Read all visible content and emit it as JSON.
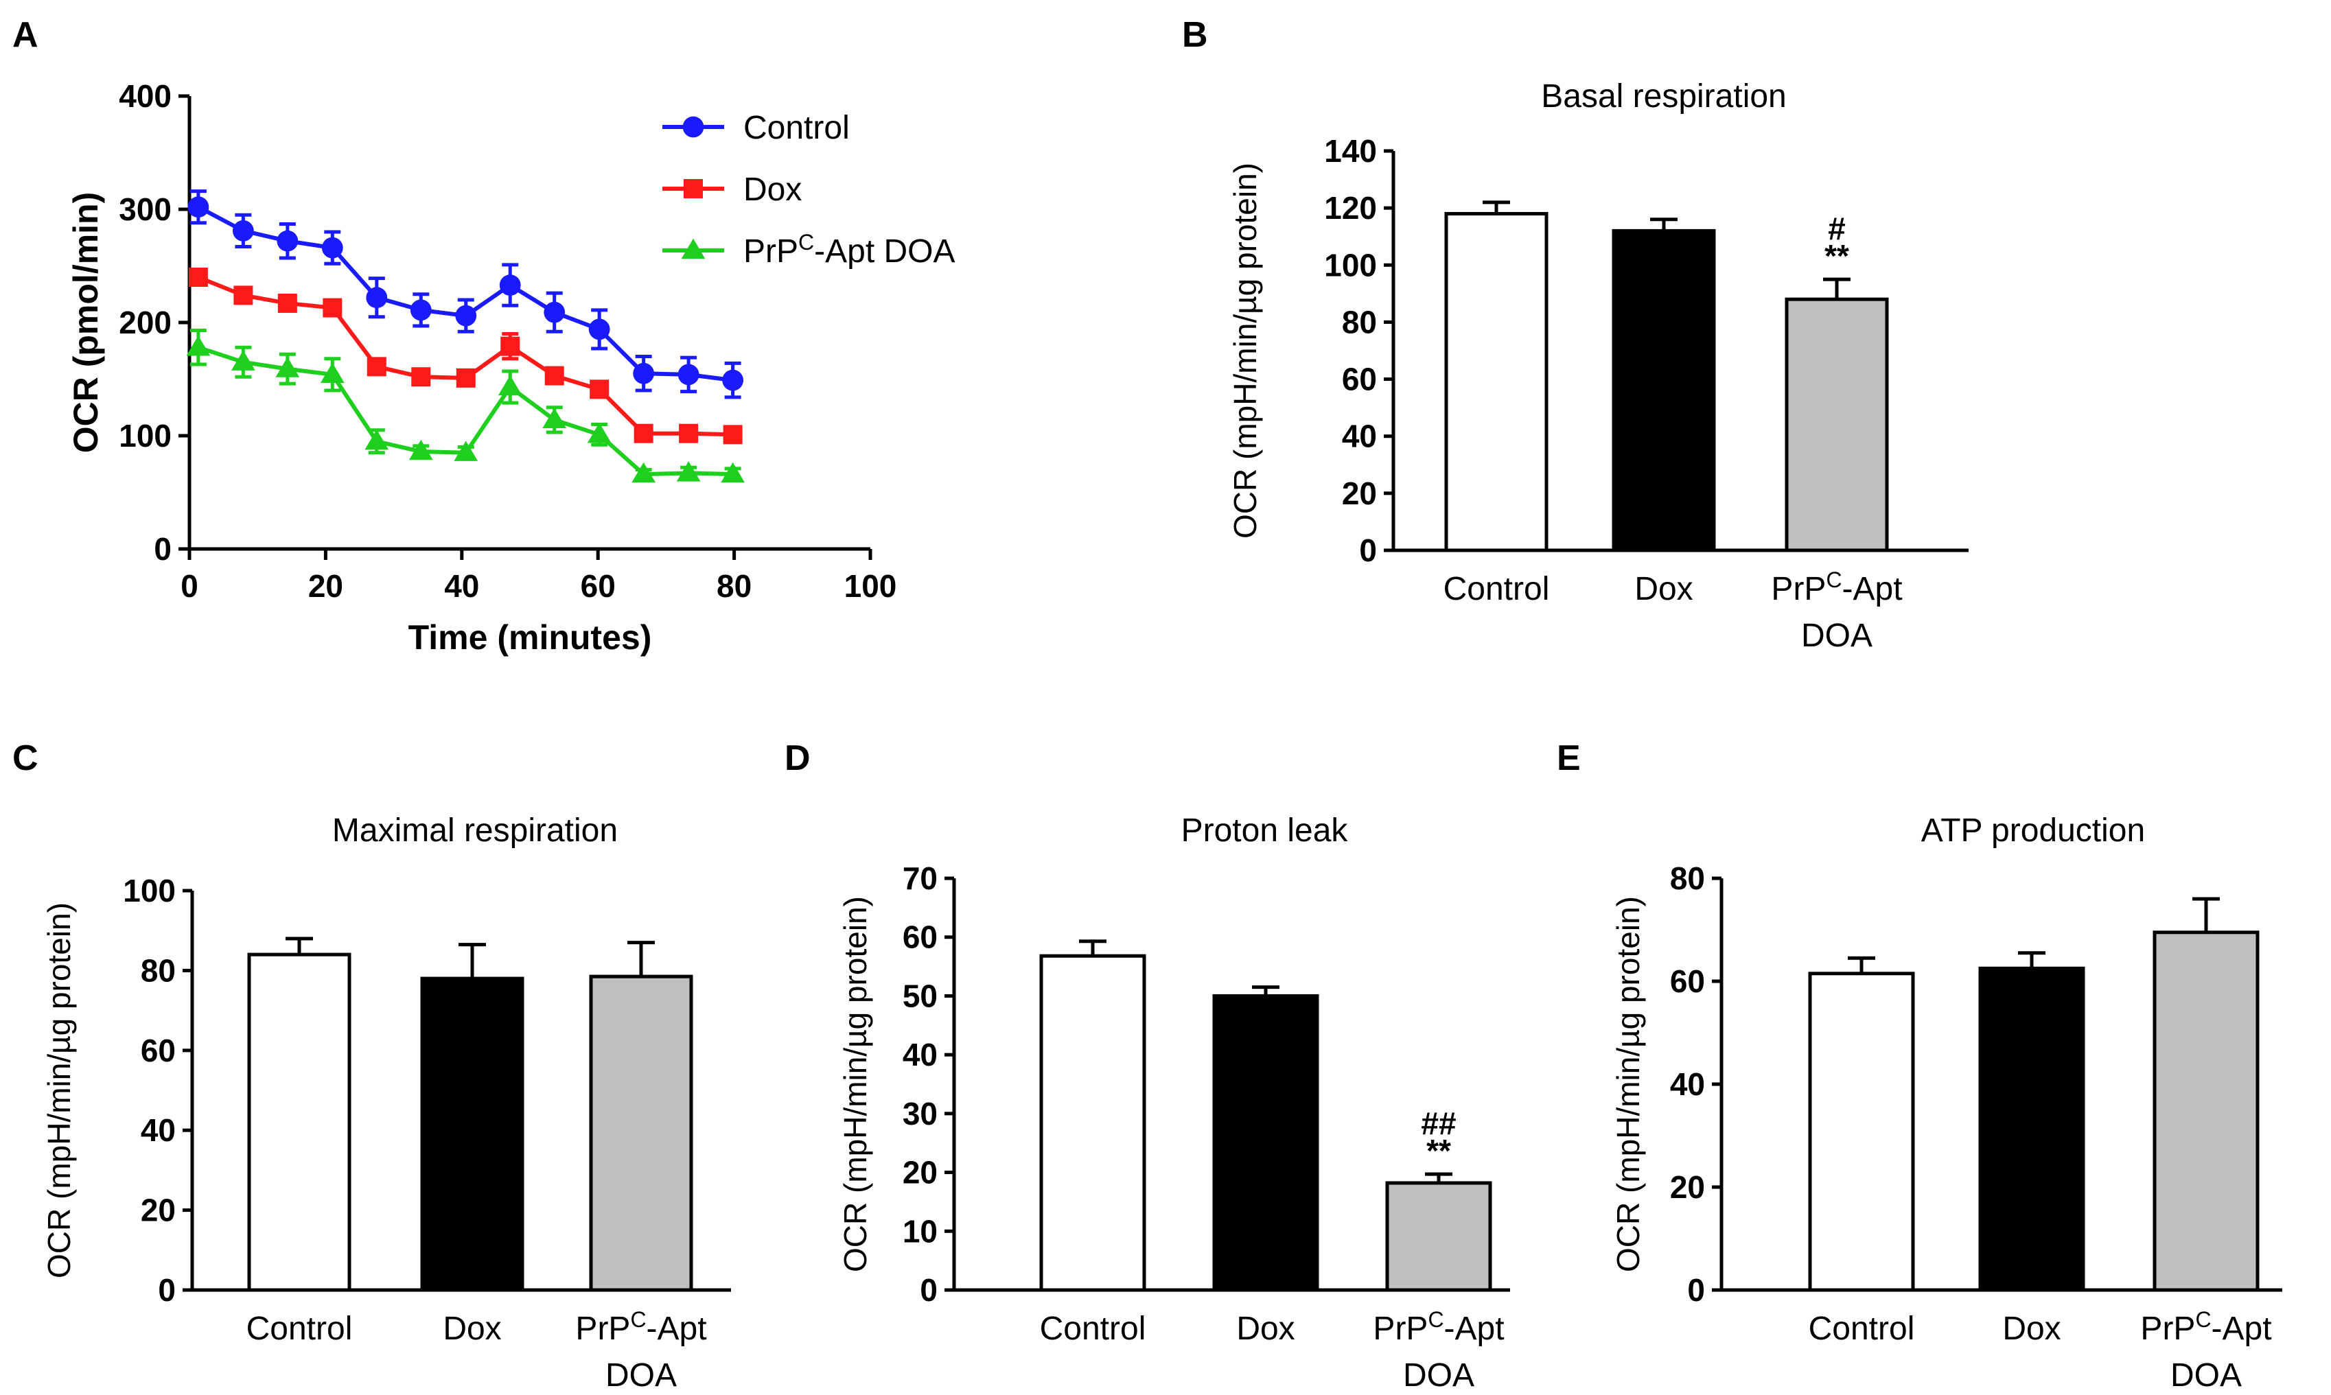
{
  "chart_data": [
    {
      "panel": "A",
      "type": "line",
      "title": "",
      "xlabel": "Time (minutes)",
      "ylabel": "OCR (pmol/min)",
      "xlim": [
        0,
        100
      ],
      "ylim": [
        0,
        400
      ],
      "xticks": [
        "0",
        "20",
        "40",
        "60",
        "80",
        "100"
      ],
      "yticks": [
        "0",
        "100",
        "200",
        "300",
        "400"
      ],
      "legend_position": "top-right",
      "x": [
        1.3,
        7.9,
        14.4,
        21,
        27.5,
        34,
        40.6,
        47.1,
        53.6,
        60.2,
        66.7,
        73.3,
        79.8
      ],
      "series": [
        {
          "name": "Control",
          "color": "#1a1aff",
          "marker": "circle",
          "values": [
            302,
            281,
            272,
            266,
            222,
            211,
            206,
            233,
            209,
            194,
            155,
            154,
            149
          ],
          "errors": [
            14,
            14,
            15,
            14,
            17,
            14,
            14,
            18,
            17,
            17,
            15,
            15,
            15
          ]
        },
        {
          "name": "Dox",
          "color": "#ff1a1a",
          "marker": "square",
          "values": [
            240,
            224,
            217,
            213,
            161,
            152,
            151,
            179,
            153,
            141,
            102,
            102,
            101
          ],
          "errors": [
            5,
            5,
            4,
            5,
            5,
            4,
            4,
            11,
            5,
            5,
            4,
            4,
            4
          ]
        },
        {
          "name": "PrP",
          "name_sup": "C",
          "name_rest": "-Apt DOA",
          "color": "#1ecf1e",
          "marker": "triangle",
          "values": [
            178,
            165,
            159,
            154,
            95,
            86,
            85,
            143,
            114,
            101,
            66,
            67,
            66
          ],
          "errors": [
            15,
            13,
            13,
            14,
            10,
            5,
            5,
            14,
            11,
            9,
            4,
            5,
            5
          ]
        }
      ]
    },
    {
      "panel": "B",
      "type": "bar",
      "title": "Basal respiration",
      "ylabel": "OCR (mpH/min/µg protein)",
      "ylim": [
        0,
        140
      ],
      "yticks": [
        "0",
        "20",
        "40",
        "60",
        "80",
        "100",
        "120",
        "140"
      ],
      "categories": [
        "Control",
        "Dox",
        "PrPᶜ-Apt DOA"
      ],
      "values": [
        118,
        112,
        88
      ],
      "errors": [
        4,
        4,
        7
      ],
      "colors": [
        "#ffffff",
        "#000000",
        "#c0c0c0"
      ],
      "annotations": {
        "2": [
          "#",
          "**"
        ]
      }
    },
    {
      "panel": "C",
      "type": "bar",
      "title": "Maximal respiration",
      "ylabel": "OCR (mpH/min/µg protein)",
      "ylim": [
        0,
        100
      ],
      "yticks": [
        "0",
        "20",
        "40",
        "60",
        "80",
        "100"
      ],
      "categories": [
        "Control",
        "Dox",
        "PrPᶜ-Apt DOA"
      ],
      "values": [
        84,
        78,
        78.5
      ],
      "errors": [
        4,
        8.5,
        8.5
      ],
      "colors": [
        "#ffffff",
        "#000000",
        "#c0c0c0"
      ],
      "annotations": {}
    },
    {
      "panel": "D",
      "type": "bar",
      "title": "Proton leak",
      "ylabel": "OCR (mpH/min/µg protein)",
      "ylim": [
        0,
        70
      ],
      "yticks": [
        "0",
        "10",
        "20",
        "30",
        "40",
        "50",
        "60",
        "70"
      ],
      "categories": [
        "Control",
        "Dox",
        "PrPᶜ-Apt DOA"
      ],
      "values": [
        56.8,
        50,
        18.2
      ],
      "errors": [
        2.5,
        1.5,
        1.5
      ],
      "colors": [
        "#ffffff",
        "#000000",
        "#c0c0c0"
      ],
      "annotations": {
        "2": [
          "##",
          "**"
        ]
      }
    },
    {
      "panel": "E",
      "type": "bar",
      "title": "ATP production",
      "ylabel": "OCR (mpH/min/µg protein)",
      "ylim": [
        0,
        80
      ],
      "yticks": [
        "0",
        "20",
        "40",
        "60",
        "80"
      ],
      "categories": [
        "Control",
        "Dox",
        "PrPᶜ-Apt DOA"
      ],
      "values": [
        61.5,
        62.5,
        69.5
      ],
      "errors": [
        3,
        3,
        6.5
      ],
      "colors": [
        "#ffffff",
        "#000000",
        "#c0c0c0"
      ],
      "annotations": {}
    }
  ],
  "labels": {
    "panel_a": "A",
    "panel_b": "B",
    "panel_c": "C",
    "panel_d": "D",
    "panel_e": "E",
    "prp_base": "PrP",
    "prp_sup": "C",
    "prp_rest": "-Apt",
    "prp_line2": "DOA"
  }
}
